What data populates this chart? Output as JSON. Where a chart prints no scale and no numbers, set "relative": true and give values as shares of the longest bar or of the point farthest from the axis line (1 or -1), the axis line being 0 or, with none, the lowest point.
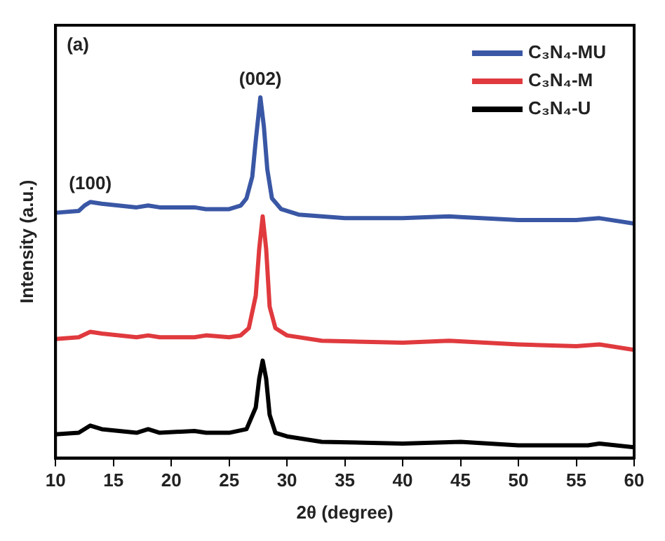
{
  "chart_data": {
    "type": "line",
    "relative": true,
    "xlabel": "2θ (degree)",
    "ylabel": "Intensity (a.u.)",
    "xlim": [
      10,
      60
    ],
    "xticks": [
      10,
      15,
      20,
      25,
      30,
      35,
      40,
      45,
      50,
      55,
      60
    ],
    "legend": "top right",
    "marker": "none",
    "line_style": "solid",
    "annotations": [
      "(a)",
      {
        "text": "(100)",
        "x": 13,
        "y": 0.71
      },
      {
        "text": "(002)",
        "x": 27.7,
        "y": 1.0
      }
    ],
    "series": [
      {
        "name": "C₃N₄-MU",
        "color": "#3a57a5",
        "x": [
          10,
          12,
          12.5,
          13,
          14,
          17,
          18,
          19,
          22,
          23,
          25,
          26,
          26.5,
          27,
          27.3,
          27.7,
          28,
          28.3,
          28.7,
          29.5,
          31,
          35,
          40,
          44,
          45,
          50,
          55,
          57,
          60
        ],
        "values": [
          0.68,
          0.685,
          0.7,
          0.71,
          0.705,
          0.695,
          0.7,
          0.695,
          0.695,
          0.69,
          0.69,
          0.7,
          0.72,
          0.78,
          0.88,
          1.0,
          0.92,
          0.8,
          0.72,
          0.69,
          0.675,
          0.665,
          0.665,
          0.67,
          0.668,
          0.66,
          0.66,
          0.665,
          0.65
        ]
      },
      {
        "name": "C₃N₄-M",
        "color": "#e03a3e",
        "x": [
          10,
          12,
          13,
          14,
          17,
          18,
          19,
          22,
          23,
          25,
          26,
          26.7,
          27.3,
          27.6,
          27.9,
          28.2,
          28.5,
          29,
          30,
          33,
          40,
          44,
          50,
          55,
          57,
          60
        ],
        "values": [
          0.33,
          0.335,
          0.35,
          0.345,
          0.335,
          0.34,
          0.335,
          0.335,
          0.34,
          0.335,
          0.34,
          0.36,
          0.45,
          0.58,
          0.67,
          0.58,
          0.42,
          0.36,
          0.34,
          0.325,
          0.32,
          0.325,
          0.315,
          0.31,
          0.315,
          0.3
        ]
      },
      {
        "name": "C₃N₄-U",
        "color": "#000000",
        "x": [
          10,
          12,
          13,
          14,
          17,
          18,
          19,
          22,
          23,
          25,
          26.5,
          27.3,
          27.6,
          27.9,
          28.2,
          28.5,
          29,
          30,
          33,
          40,
          45,
          50,
          56,
          57,
          60
        ],
        "values": [
          0.066,
          0.07,
          0.09,
          0.08,
          0.07,
          0.08,
          0.07,
          0.075,
          0.07,
          0.07,
          0.08,
          0.14,
          0.22,
          0.27,
          0.22,
          0.12,
          0.07,
          0.06,
          0.045,
          0.04,
          0.045,
          0.035,
          0.035,
          0.04,
          0.03
        ]
      }
    ]
  }
}
